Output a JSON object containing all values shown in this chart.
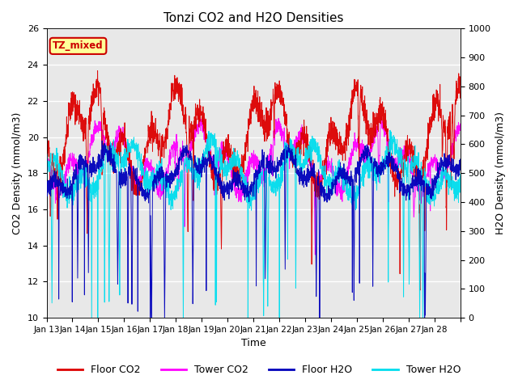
{
  "title": "Tonzi CO2 and H2O Densities",
  "xlabel": "Time",
  "ylabel_left": "CO2 Density (mmol/m3)",
  "ylabel_right": "H2O Density (mmol/m3)",
  "ylim_left": [
    10,
    26
  ],
  "ylim_right": [
    0,
    1000
  ],
  "yticks_left": [
    10,
    12,
    14,
    16,
    18,
    20,
    22,
    24,
    26
  ],
  "yticks_right": [
    0,
    100,
    200,
    300,
    400,
    500,
    600,
    700,
    800,
    900,
    1000
  ],
  "xtick_labels": [
    "Jan 13",
    "Jan 14",
    "Jan 15",
    "Jan 16",
    "Jan 17",
    "Jan 18",
    "Jan 19",
    "Jan 20",
    "Jan 21",
    "Jan 22",
    "Jan 23",
    "Jan 24",
    "Jan 25",
    "Jan 26",
    "Jan 27",
    "Jan 28"
  ],
  "annotation_text": "TZ_mixed",
  "annotation_fg": "#cc0000",
  "annotation_bg": "#ffff99",
  "bg_color": "#e8e8e8",
  "floor_co2_color": "#dd0000",
  "tower_co2_color": "#ff00ff",
  "floor_h2o_color": "#0000bb",
  "tower_h2o_color": "#00ddee",
  "n_days": 16,
  "pts_per_day": 144
}
